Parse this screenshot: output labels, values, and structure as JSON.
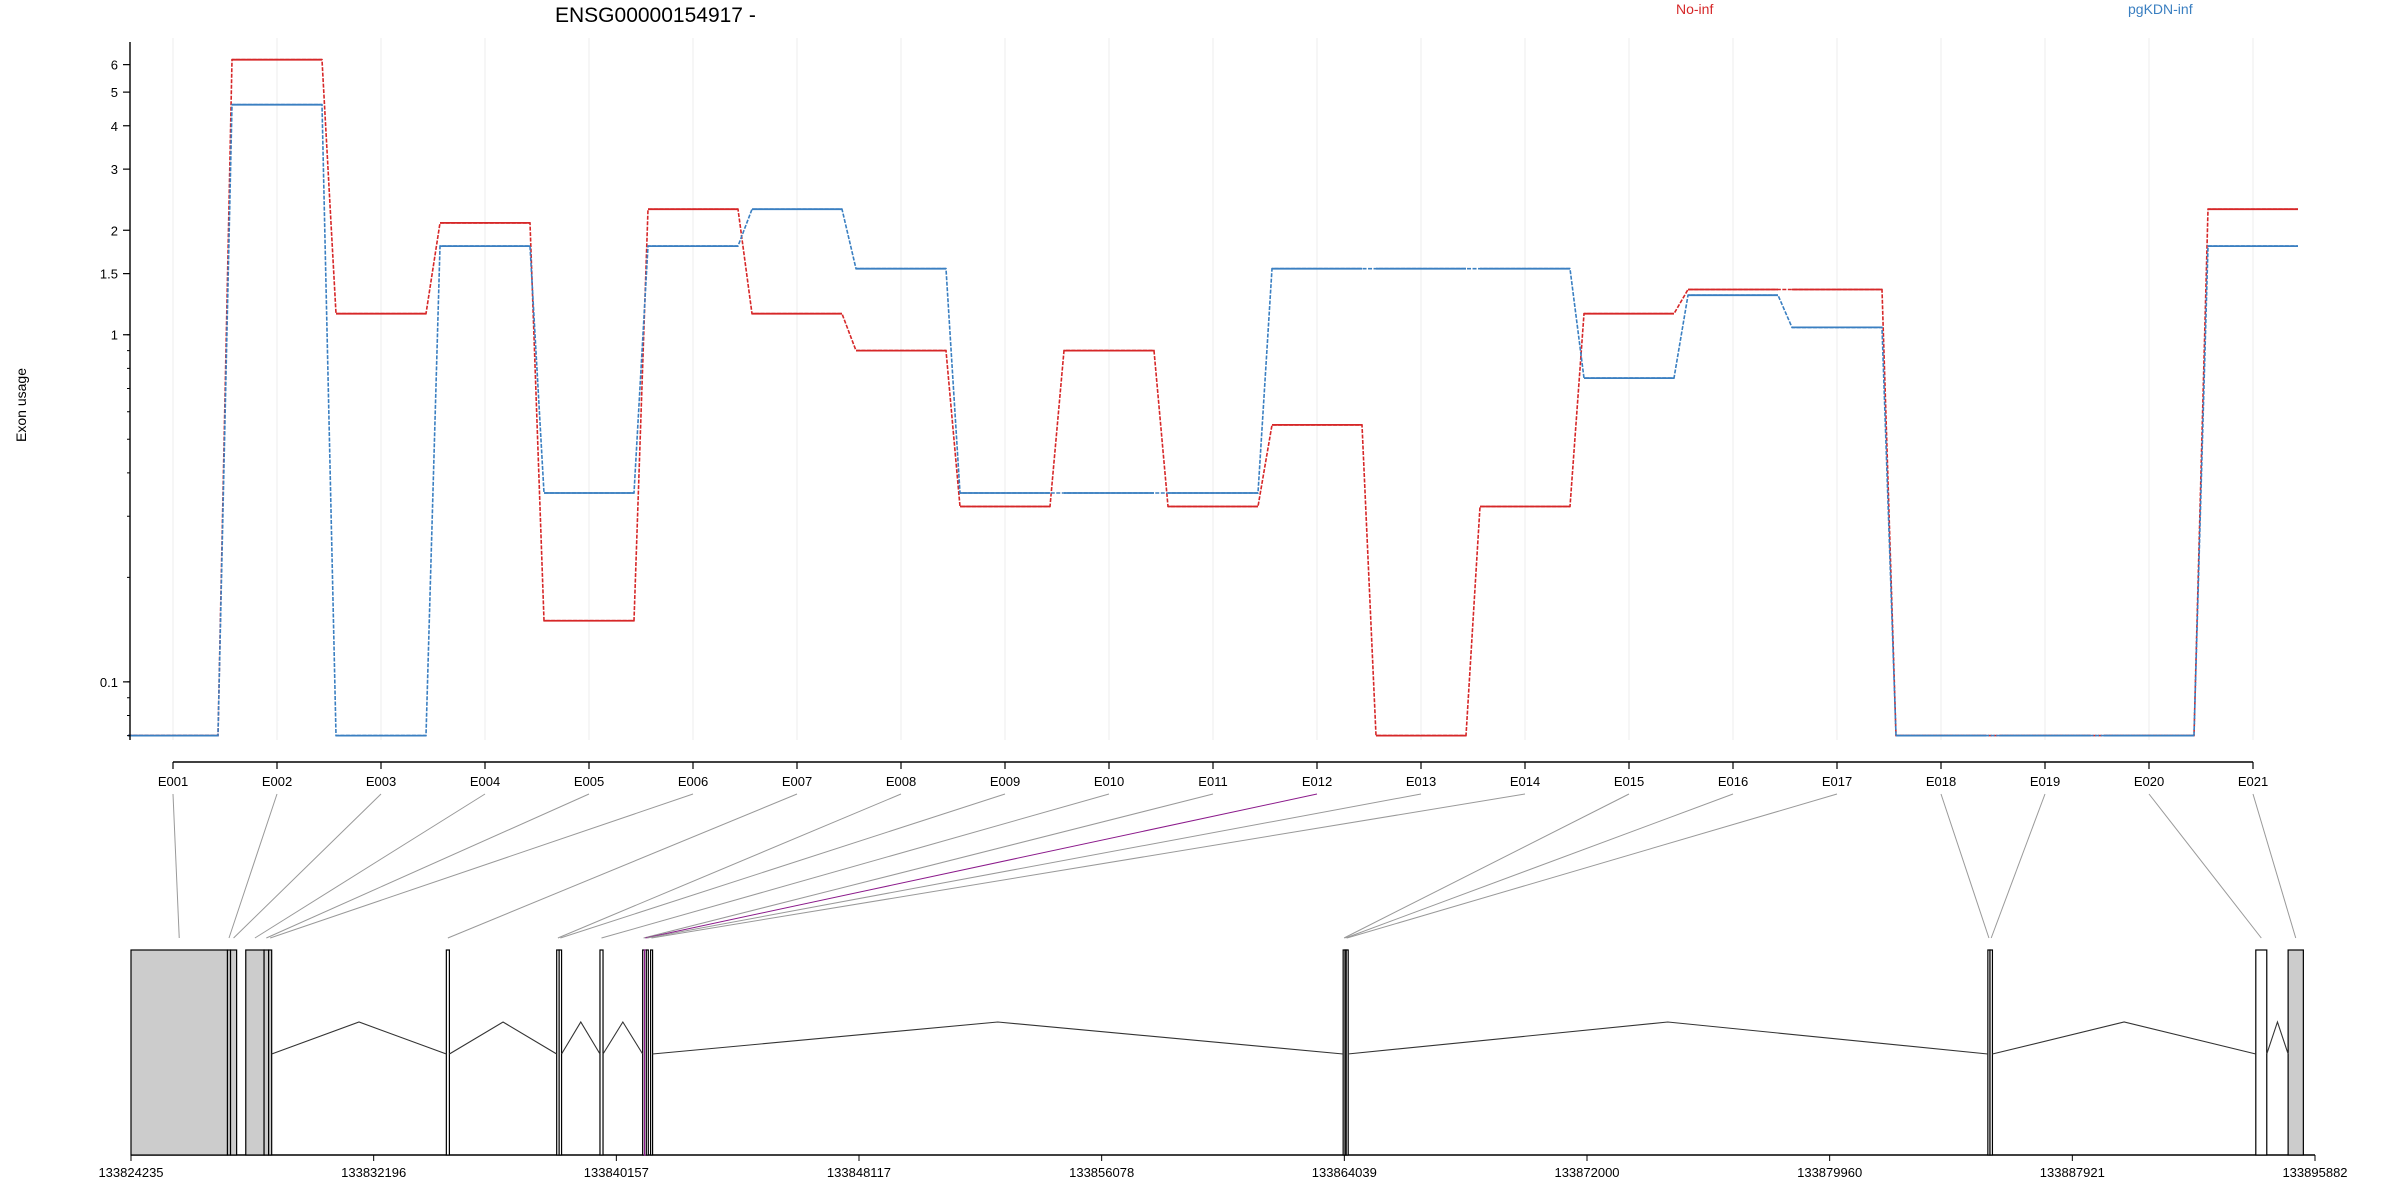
{
  "chart_data": {
    "type": "line",
    "title": "ENSG00000154917 -",
    "ylabel": "Exon usage",
    "y_scale": "log",
    "yticks": [
      0.1,
      1,
      1.5,
      2,
      3,
      4,
      5,
      6
    ],
    "ytick_labels": [
      "0.1",
      "1",
      "1.5",
      "2",
      "3",
      "4",
      "5",
      "6"
    ],
    "ylim": [
      0.068,
      6.7
    ],
    "categories": [
      "E001",
      "E002",
      "E003",
      "E004",
      "E005",
      "E006",
      "E007",
      "E008",
      "E009",
      "E010",
      "E011",
      "E012",
      "E013",
      "E014",
      "E015",
      "E016",
      "E017",
      "E018",
      "E019",
      "E020",
      "E021"
    ],
    "series": [
      {
        "name": "No-inf",
        "color": "#d62728",
        "values": [
          0.07,
          6.2,
          1.15,
          2.1,
          0.15,
          2.3,
          1.15,
          0.9,
          0.32,
          0.9,
          0.32,
          0.55,
          0.07,
          0.32,
          1.15,
          1.35,
          1.35,
          0.07,
          0.07,
          0.07,
          2.3
        ]
      },
      {
        "name": "pgKDN-inf",
        "color": "#3a7fc1",
        "values": [
          0.07,
          4.6,
          0.07,
          1.8,
          0.35,
          1.8,
          2.3,
          1.55,
          0.35,
          0.35,
          0.35,
          1.55,
          1.55,
          1.55,
          0.75,
          1.3,
          1.05,
          0.07,
          0.07,
          0.07,
          1.8
        ]
      }
    ],
    "legend": "top",
    "gene_model": {
      "strand": "-",
      "coord_ticks": [
        133824235,
        133832196,
        133840157,
        133848117,
        133856078,
        133864039,
        133872000,
        133879960,
        133887921,
        133895882
      ],
      "coord_tick_labels": [
        "133824235",
        "133832196",
        "133840157",
        "133848117",
        "133856078",
        "133864039",
        "133872000",
        "133879960",
        "133887921",
        "133895882"
      ],
      "exons": [
        {
          "id": "E001",
          "start": 133824235,
          "end": 133827400,
          "filled": true
        },
        {
          "id": "E002",
          "start": 133827400,
          "end": 133827500,
          "filled": true
        },
        {
          "id": "E003",
          "start": 133827500,
          "end": 133827700,
          "filled": true
        },
        {
          "id": "E004",
          "start": 133828000,
          "end": 133828600,
          "filled": true
        },
        {
          "id": "E005",
          "start": 133828600,
          "end": 133828750,
          "filled": true
        },
        {
          "id": "E006",
          "start": 133828750,
          "end": 133828850,
          "filled": true
        },
        {
          "id": "E007",
          "start": 133834580,
          "end": 133834680,
          "filled": false
        },
        {
          "id": "E008",
          "start": 133838200,
          "end": 133838280,
          "filled": false
        },
        {
          "id": "E009",
          "start": 133838280,
          "end": 133838360,
          "filled": false
        },
        {
          "id": "E010",
          "start": 133839620,
          "end": 133839720,
          "filled": false
        },
        {
          "id": "E011",
          "start": 133841020,
          "end": 133841080,
          "filled": false
        },
        {
          "id": "E012",
          "start": 133841080,
          "end": 133841140,
          "filled": false,
          "highlight": true
        },
        {
          "id": "E013",
          "start": 133841140,
          "end": 133841200,
          "filled": false
        },
        {
          "id": "E014",
          "start": 133841280,
          "end": 133841340,
          "filled": false
        },
        {
          "id": "E015",
          "start": 133864000,
          "end": 133864060,
          "filled": false
        },
        {
          "id": "E016",
          "start": 133864060,
          "end": 133864100,
          "filled": false
        },
        {
          "id": "E017",
          "start": 133864100,
          "end": 133864150,
          "filled": false
        },
        {
          "id": "E018",
          "start": 133885150,
          "end": 133885220,
          "filled": false
        },
        {
          "id": "E019",
          "start": 133885220,
          "end": 133885300,
          "filled": false
        },
        {
          "id": "E020",
          "start": 133893940,
          "end": 133894300,
          "filled": false
        },
        {
          "id": "E021",
          "start": 133895000,
          "end": 133895500,
          "filled": true
        }
      ]
    }
  }
}
